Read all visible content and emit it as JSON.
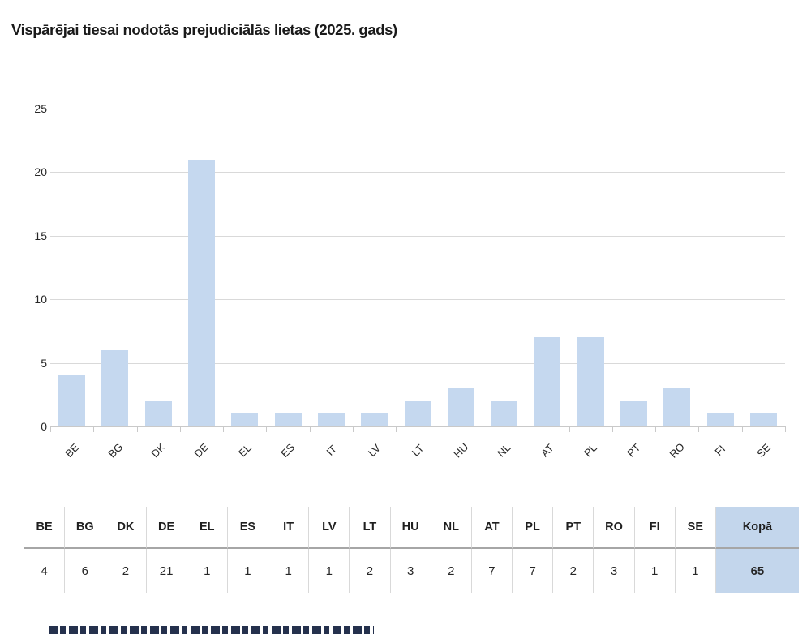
{
  "chart_data": {
    "type": "bar",
    "title": "Vispārējai tiesai nodotās prejudiciālās lietas (2025. gads)",
    "categories": [
      "BE",
      "BG",
      "DK",
      "DE",
      "EL",
      "ES",
      "IT",
      "LV",
      "LT",
      "HU",
      "NL",
      "AT",
      "PL",
      "PT",
      "RO",
      "FI",
      "SE"
    ],
    "values": [
      4,
      6,
      2,
      21,
      1,
      1,
      1,
      1,
      2,
      3,
      2,
      7,
      7,
      2,
      3,
      1,
      1
    ],
    "xlabel": "",
    "ylabel": "",
    "ylim": [
      0,
      25
    ],
    "yticks": [
      0,
      5,
      10,
      15,
      20,
      25
    ],
    "grid": true,
    "legend": false,
    "bar_color": "#c5d8ef"
  },
  "table": {
    "headers": [
      "BE",
      "BG",
      "DK",
      "DE",
      "EL",
      "ES",
      "IT",
      "LV",
      "LT",
      "HU",
      "NL",
      "AT",
      "PL",
      "PT",
      "RO",
      "FI",
      "SE",
      "Kopā"
    ],
    "values": [
      "4",
      "6",
      "2",
      "21",
      "1",
      "1",
      "1",
      "1",
      "2",
      "3",
      "2",
      "7",
      "7",
      "2",
      "3",
      "1",
      "1",
      "65"
    ],
    "total_label": "Kopā",
    "total_value": "65"
  },
  "colors": {
    "bar_fill": "#c5d8ef",
    "total_cell_background": "#c3d6ec",
    "gridline": "#d9d9d9",
    "axis": "#c9c9c9",
    "header_separator": "#a6a6a6",
    "text": "#1a1a1a"
  }
}
